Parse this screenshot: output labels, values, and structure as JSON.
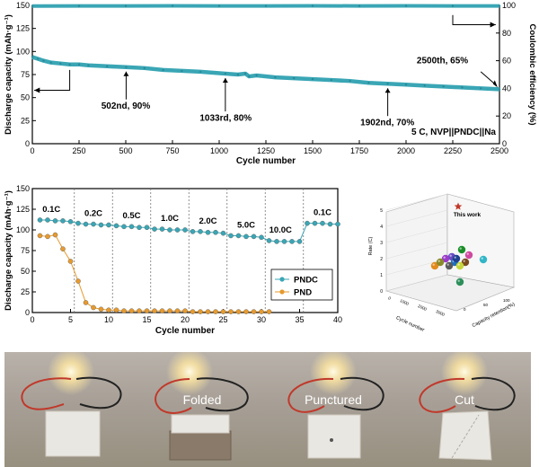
{
  "chart_data": [
    {
      "type": "scatter",
      "title": "",
      "xlabel": "Cycle number",
      "ylabel": "Discharge capacity (mAh·g⁻¹)",
      "y2label": "Coulombic efficiency (%)",
      "xlim": [
        0,
        2500
      ],
      "ylim": [
        0,
        150
      ],
      "y2lim": [
        0,
        100
      ],
      "xticks": [
        "0",
        "250",
        "500",
        "750",
        "1000",
        "1250",
        "1500",
        "1750",
        "2000",
        "2250",
        "2500"
      ],
      "yticks": [
        "0",
        "25",
        "50",
        "75",
        "100",
        "125",
        "150"
      ],
      "y2ticks": [
        "0",
        "20",
        "40",
        "60",
        "80",
        "100"
      ],
      "series": [
        {
          "axis": "left",
          "x": [
            0,
            30,
            60,
            100,
            150,
            200,
            250,
            300,
            400,
            502,
            600,
            700,
            800,
            900,
            1033,
            1100,
            1140,
            1160,
            1200,
            1300,
            1400,
            1500,
            1600,
            1700,
            1800,
            1902,
            2000,
            2100,
            2200,
            2300,
            2400,
            2500
          ],
          "values": [
            94,
            92,
            90,
            88,
            87,
            86,
            86,
            85,
            84,
            83,
            82,
            80,
            79,
            78,
            76,
            75,
            76,
            73,
            74,
            72,
            71,
            70,
            69,
            68,
            66,
            65,
            64,
            63,
            62,
            61,
            60,
            59
          ]
        },
        {
          "axis": "right",
          "x": [
            0,
            250,
            500,
            750,
            1000,
            1250,
            1500,
            1750,
            2000,
            2250,
            2500
          ],
          "values": [
            99.5,
            99.6,
            99.6,
            99.7,
            99.6,
            99.6,
            99.7,
            99.6,
            99.7,
            99.6,
            99.6
          ]
        }
      ],
      "annotations": [
        "502nd, 90%",
        "1033rd, 80%",
        "1902nd, 70%",
        "2500th, 65%",
        "5 C, NVP||PNDC||Na"
      ],
      "annotation_points": [
        [
          502,
          83
        ],
        [
          1033,
          76
        ],
        [
          1902,
          65
        ],
        [
          2500,
          59
        ]
      ]
    },
    {
      "type": "line",
      "title": "",
      "xlabel": "Cycle number",
      "ylabel": "Discharge capacity (mAh·g⁻¹)",
      "xlim": [
        0,
        40
      ],
      "ylim": [
        0,
        150
      ],
      "xticks": [
        "0",
        "5",
        "10",
        "15",
        "20",
        "25",
        "30",
        "35",
        "40"
      ],
      "yticks": [
        "0",
        "25",
        "50",
        "75",
        "100",
        "125",
        "150"
      ],
      "rate_labels": [
        "0.1C",
        "0.2C",
        "0.5C",
        "1.0C",
        "2.0C",
        "5.0C",
        "10.0C",
        "0.1C"
      ],
      "rate_label_x": [
        2.5,
        8,
        13,
        18,
        23,
        28,
        32.5,
        38
      ],
      "rate_boundaries": [
        5.5,
        10.5,
        15.5,
        20.5,
        25.5,
        30.5,
        35.5
      ],
      "legend": "center-right",
      "series": [
        {
          "name": "PNDC",
          "x": [
            1,
            2,
            3,
            4,
            5,
            6,
            7,
            8,
            9,
            10,
            11,
            12,
            13,
            14,
            15,
            16,
            17,
            18,
            19,
            20,
            21,
            22,
            23,
            24,
            25,
            26,
            27,
            28,
            29,
            30,
            31,
            32,
            33,
            34,
            35,
            36,
            37,
            38,
            39,
            40
          ],
          "values": [
            112,
            112,
            111,
            111,
            110,
            108,
            107,
            107,
            106,
            106,
            105,
            104,
            104,
            103,
            103,
            101,
            101,
            100,
            100,
            100,
            98,
            98,
            97,
            97,
            96,
            93,
            93,
            92,
            92,
            91,
            87,
            86,
            86,
            86,
            86,
            108,
            108,
            108,
            107,
            107
          ]
        },
        {
          "name": "PND",
          "x": [
            1,
            2,
            3,
            4,
            5,
            6,
            7,
            8,
            9,
            10,
            11,
            12,
            13,
            14,
            15,
            16,
            17,
            18,
            19,
            20,
            21,
            22,
            23,
            24,
            25,
            26,
            27,
            28,
            29,
            30,
            31
          ],
          "values": [
            93,
            92,
            94,
            77,
            62,
            38,
            12,
            6,
            4,
            3,
            3,
            2,
            2,
            2,
            2,
            2,
            2,
            2,
            2,
            2,
            1,
            1,
            1,
            1,
            1,
            1,
            1,
            1,
            1,
            1,
            1
          ]
        }
      ]
    },
    {
      "type": "scatter",
      "title": "",
      "xlabel": "Cycle number",
      "ylabel": "Rate (C)",
      "zlabel": "Capacity retention(%)",
      "yticks": [
        "0",
        "1",
        "2",
        "3",
        "4",
        "5"
      ],
      "xticks": [
        "0",
        "1000",
        "2000",
        "3000"
      ],
      "zticks": [
        "0",
        "50",
        "100"
      ],
      "annotation": "This work",
      "points": [
        {
          "color": "#6a4bc4"
        },
        {
          "color": "#2c8f5a"
        },
        {
          "color": "#e38b1d"
        },
        {
          "color": "#9b3cc9"
        },
        {
          "color": "#1f6fbf"
        },
        {
          "color": "#7a4a1f"
        },
        {
          "color": "#c7d63a"
        },
        {
          "color": "#31b6c7"
        },
        {
          "color": "#5a5a5a"
        },
        {
          "color": "#1b8f2a"
        },
        {
          "color": "#d04aa0"
        },
        {
          "color": "#8a8a2a"
        },
        {
          "color": "#1f3f8f"
        }
      ]
    }
  ],
  "photos": [
    {
      "label": ""
    },
    {
      "label": "Folded"
    },
    {
      "label": "Punctured"
    },
    {
      "label": "Cut"
    }
  ],
  "colors": {
    "cycle": "#3aa6b5",
    "pndc": "#3aa6b5",
    "pnd": "#e69a2e",
    "star": "#c0392b"
  }
}
